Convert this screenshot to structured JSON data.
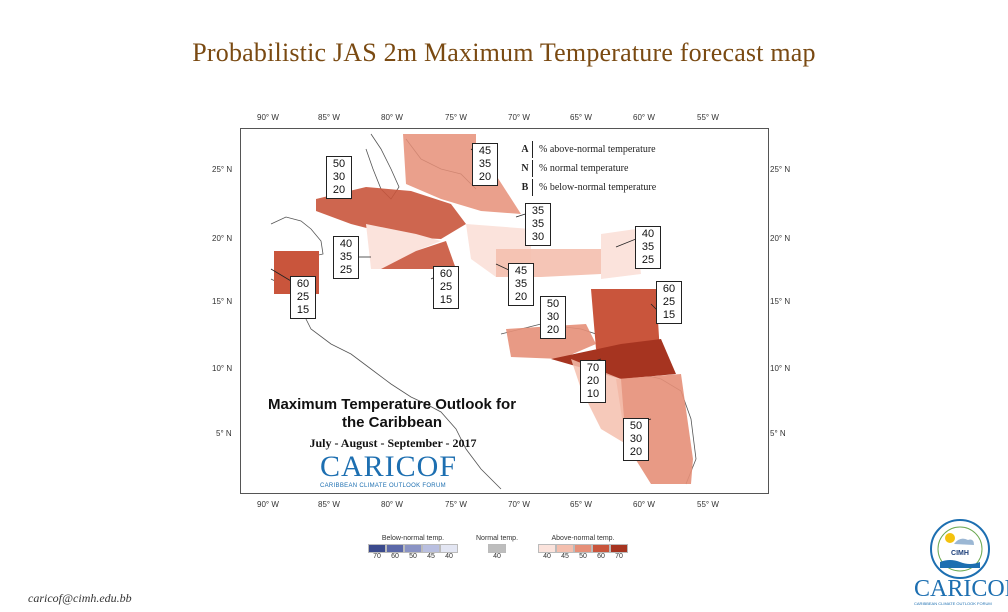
{
  "slide": {
    "title": "Probabilistic JAS 2m Maximum Temperature forecast map",
    "footer_email": "caricof@cimh.edu.bb"
  },
  "map": {
    "lon_ticks": [
      "90° W",
      "85° W",
      "80° W",
      "75° W",
      "70° W",
      "65° W",
      "60° W",
      "55° W"
    ],
    "lat_ticks": [
      "25° N",
      "20° N",
      "15° N",
      "10° N",
      "5° N"
    ],
    "region_probabilities": [
      {
        "A": "50",
        "N": "30",
        "B": "20"
      },
      {
        "A": "45",
        "N": "35",
        "B": "20"
      },
      {
        "A": "35",
        "N": "35",
        "B": "30"
      },
      {
        "A": "40",
        "N": "35",
        "B": "25"
      },
      {
        "A": "40",
        "N": "35",
        "B": "25"
      },
      {
        "A": "60",
        "N": "25",
        "B": "15"
      },
      {
        "A": "60",
        "N": "25",
        "B": "15"
      },
      {
        "A": "45",
        "N": "35",
        "B": "20"
      },
      {
        "A": "60",
        "N": "25",
        "B": "15"
      },
      {
        "A": "50",
        "N": "30",
        "B": "20"
      },
      {
        "A": "70",
        "N": "20",
        "B": "10"
      },
      {
        "A": "50",
        "N": "30",
        "B": "20"
      }
    ],
    "reference_legend": [
      {
        "key": "A",
        "text": "% above-normal temperature"
      },
      {
        "key": "N",
        "text": "% normal temperature"
      },
      {
        "key": "B",
        "text": "% below-normal temperature"
      }
    ],
    "outlook_title": "Maximum Temperature Outlook for the Caribbean",
    "season": "July - August - September - 2017",
    "logo_word": "CARICOF",
    "logo_subtitle": "CARIBBEAN CLIMATE OUTLOOK FORUM"
  },
  "scale_legend": {
    "below": {
      "title": "Below-normal temp.",
      "labels": [
        "70",
        "60",
        "50",
        "45",
        "40"
      ],
      "colors": [
        "#3b4a8c",
        "#5b68a8",
        "#8a93c4",
        "#b9bfe0",
        "#e3e6f3"
      ]
    },
    "normal": {
      "title": "Normal temp.",
      "labels": [
        "40"
      ],
      "colors": [
        "#bdbdbd"
      ]
    },
    "above": {
      "title": "Above-normal temp.",
      "labels": [
        "40",
        "45",
        "50",
        "60",
        "70"
      ],
      "colors": [
        "#fbe3dc",
        "#f4bfae",
        "#e68f78",
        "#c9553c",
        "#a63420"
      ]
    }
  },
  "cimh_logo_text": "CIMH",
  "colors": {
    "title": "#7a4a12",
    "above_40": "#fbe3dc",
    "above_45": "#f4bfae",
    "above_50": "#e68f78",
    "above_60": "#c9553c",
    "above_70": "#a63420"
  }
}
